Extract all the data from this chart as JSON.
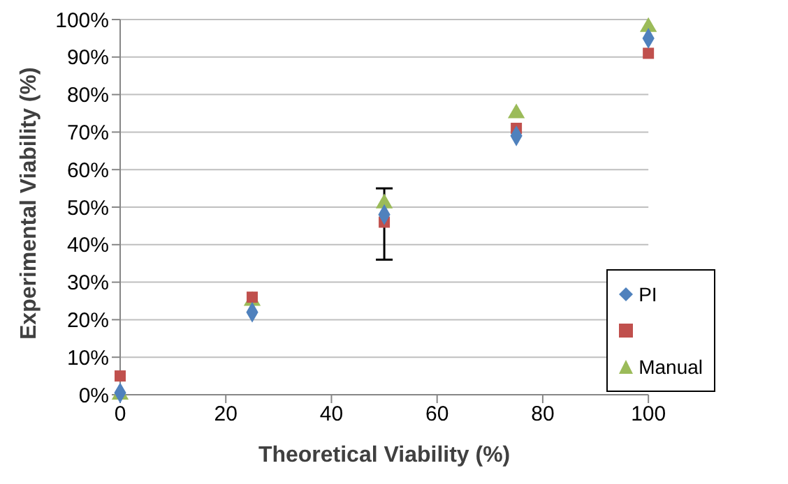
{
  "chart_data": {
    "type": "scatter",
    "xlabel": "Theoretical Viability (%)",
    "ylabel": "Experimental Viability (%)",
    "x": [
      0,
      25,
      50,
      75,
      100
    ],
    "series": [
      {
        "name": "PI",
        "color": "#4f81bd",
        "marker": "diamond",
        "values": [
          0.5,
          22,
          48,
          69,
          95
        ]
      },
      {
        "color": "#c0504d",
        "marker": "square",
        "values": [
          5,
          26,
          46,
          71,
          91
        ],
        "errors": [
          null,
          null,
          [
            36,
            55
          ],
          null,
          null
        ]
      },
      {
        "name": "Manual",
        "color": "#9bbb59",
        "marker": "triangle",
        "values": [
          0,
          25,
          51,
          75,
          98
        ]
      }
    ],
    "xlim": [
      0,
      100
    ],
    "xticks": [
      0,
      20,
      40,
      60,
      80,
      100
    ],
    "ylim": [
      0,
      100
    ],
    "yticks": [
      {
        "value": 0,
        "label": "0%"
      },
      {
        "value": 10,
        "label": "10%"
      },
      {
        "value": 20,
        "label": "20%"
      },
      {
        "value": 30,
        "label": "30%"
      },
      {
        "value": 40,
        "label": "40%"
      },
      {
        "value": 50,
        "label": "50%"
      },
      {
        "value": 60,
        "label": "60%"
      },
      {
        "value": 70,
        "label": "70%"
      },
      {
        "value": 80,
        "label": "80%"
      },
      {
        "value": 90,
        "label": "90%"
      },
      {
        "value": 100,
        "label": "100%"
      }
    ],
    "grid": "y",
    "legend": "bottom right"
  }
}
